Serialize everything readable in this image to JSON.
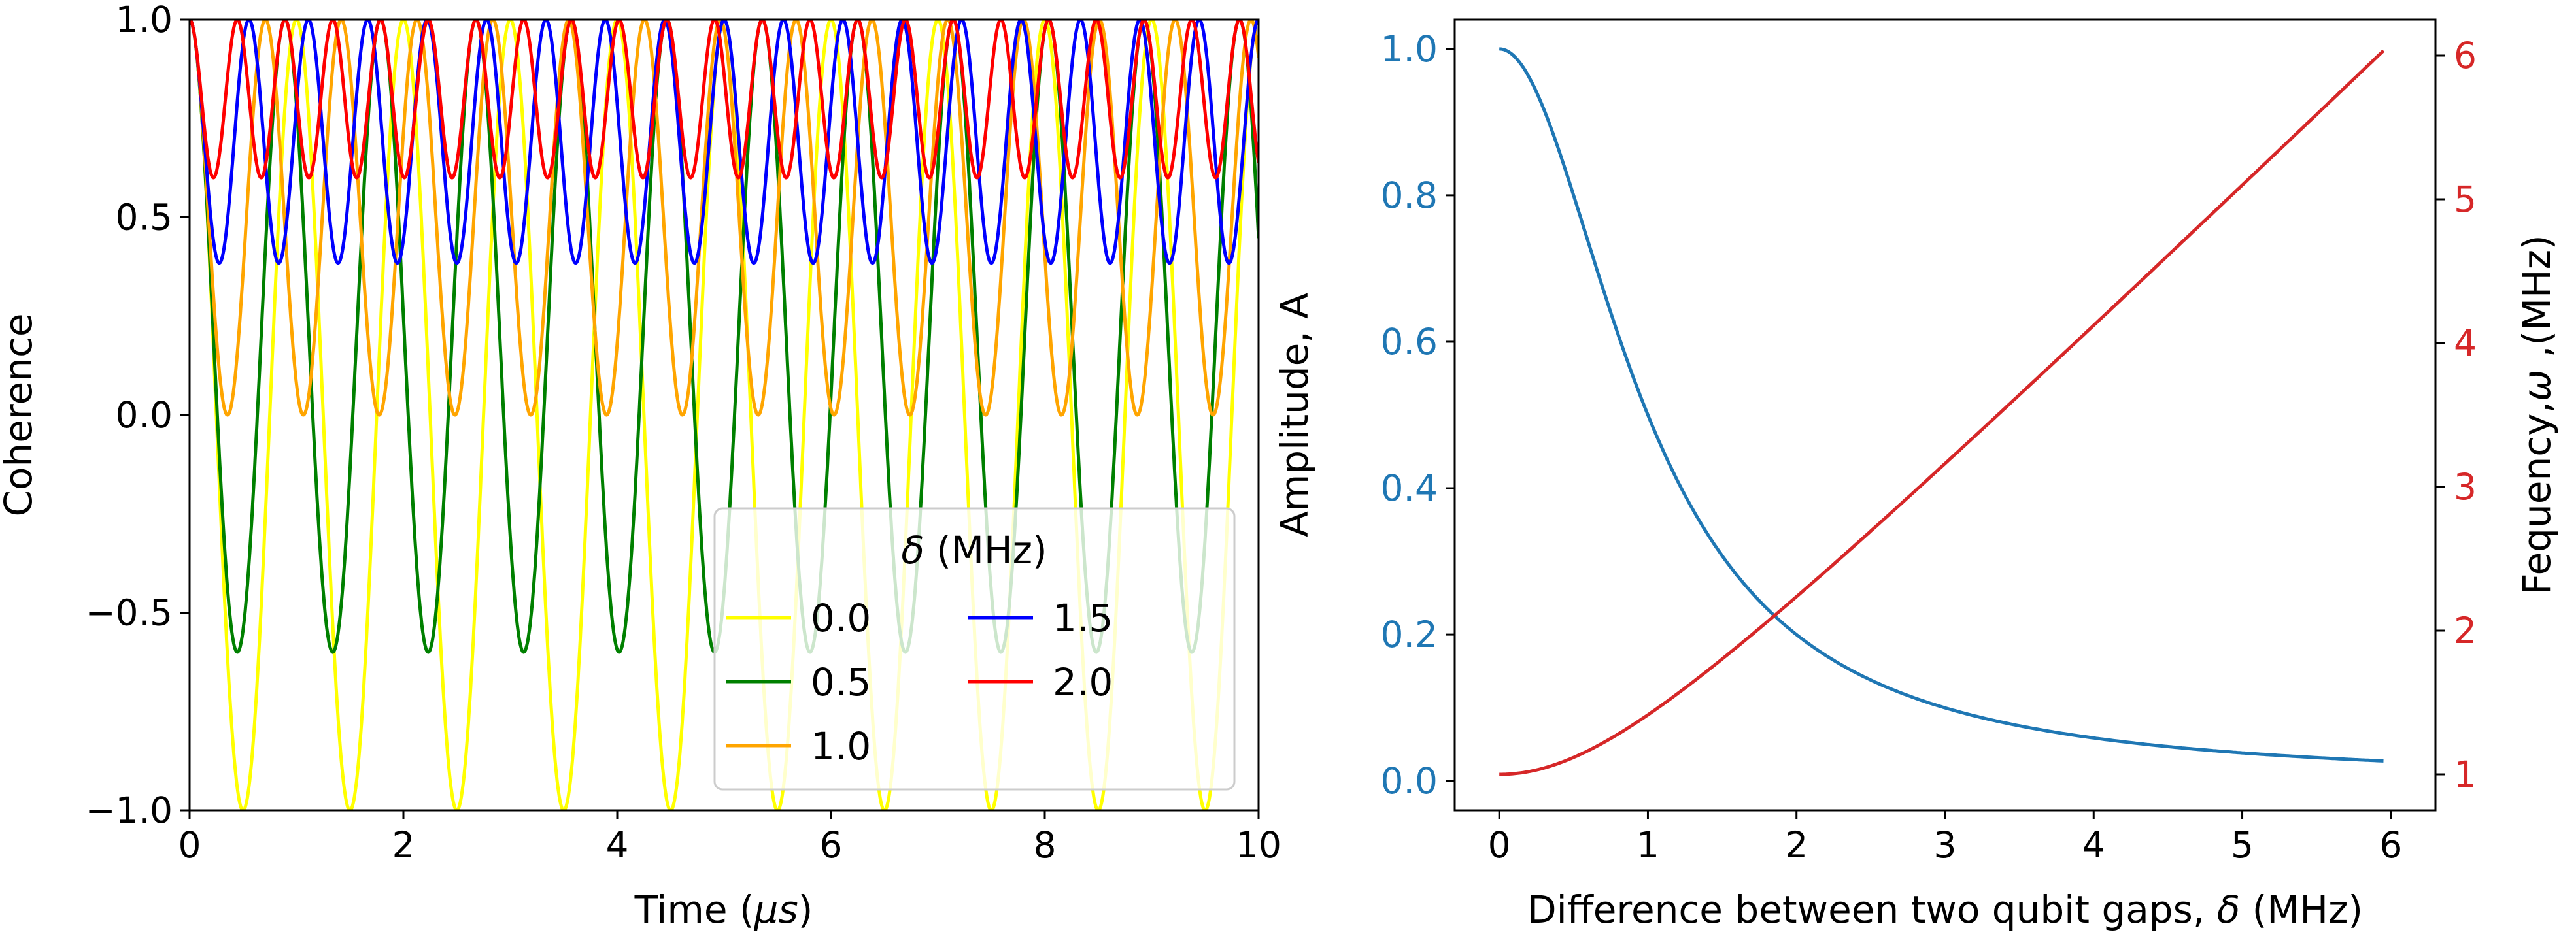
{
  "chart_data": [
    {
      "type": "line",
      "xlabel_prefix": "Time (",
      "xlabel_unit": "μs",
      "xlabel_suffix": ")",
      "ylabel": "Coherence",
      "xlim": [
        0,
        10
      ],
      "ylim": [
        -1,
        1
      ],
      "xticks": [
        0,
        2,
        4,
        6,
        8,
        10
      ],
      "xtick_labels": [
        "0",
        "2",
        "4",
        "6",
        "8",
        "10"
      ],
      "yticks": [
        -1.0,
        -0.5,
        0.0,
        0.5,
        1.0
      ],
      "ytick_labels": [
        "−1.0",
        "−0.5",
        "0.0",
        "0.5",
        "1.0"
      ],
      "legend": {
        "title_symbol": "δ",
        "title_rest": " (MHz)",
        "placement": "lower-right",
        "ncol": 2
      },
      "series": [
        {
          "name": "0.0",
          "delta": 0.0,
          "color": "#ffff00",
          "amplitude": 1.0,
          "frequency": 1.0
        },
        {
          "name": "0.5",
          "delta": 0.5,
          "color": "#008000",
          "amplitude": 0.8,
          "frequency": 1.12
        },
        {
          "name": "1.0",
          "delta": 1.0,
          "color": "#ffa500",
          "amplitude": 0.5,
          "frequency": 1.41
        },
        {
          "name": "1.5",
          "delta": 1.5,
          "color": "#0000ff",
          "amplitude": 0.308,
          "frequency": 1.8
        },
        {
          "name": "2.0",
          "delta": 2.0,
          "color": "#ff0000",
          "amplitude": 0.2,
          "frequency": 2.24
        }
      ],
      "curve_formula": "coherence(t) = 1 - A + A*cos(2*pi*f*t)"
    },
    {
      "type": "line",
      "xlabel_prefix": "Difference between two qubit gaps, ",
      "xlabel_symbol": "δ",
      "xlabel_suffix": " (MHz)",
      "xlim": [
        -0.3,
        6.3
      ],
      "xticks": [
        0,
        1,
        2,
        3,
        4,
        5,
        6
      ],
      "xtick_labels": [
        "0",
        "1",
        "2",
        "3",
        "4",
        "5",
        "6"
      ],
      "left_axis": {
        "label": "Amplitude, A",
        "color": "#1f77b4",
        "ylim": [
          -0.04,
          1.04
        ],
        "ticks": [
          0.0,
          0.2,
          0.4,
          0.6,
          0.8,
          1.0
        ],
        "tick_labels": [
          "0.0",
          "0.2",
          "0.4",
          "0.6",
          "0.8",
          "1.0"
        ]
      },
      "right_axis": {
        "label_prefix": "Fequency,",
        "label_symbol": "ω",
        "label_suffix": " ,(MHz)",
        "color": "#d62728",
        "ylim": [
          0.75,
          6.25
        ],
        "ticks": [
          1,
          2,
          3,
          4,
          5,
          6
        ],
        "tick_labels": [
          "1",
          "2",
          "3",
          "4",
          "5",
          "6"
        ]
      },
      "series": [
        {
          "name": "Amplitude, A",
          "axis": "left",
          "color": "#1f77b4",
          "delta_range": [
            0,
            5.95
          ],
          "formula": "A = 1/(1+delta^2)"
        },
        {
          "name": "Fequency, ω",
          "axis": "right",
          "color": "#d62728",
          "delta_range": [
            0,
            5.95
          ],
          "formula": "w = sqrt(1+delta^2)"
        }
      ]
    }
  ]
}
